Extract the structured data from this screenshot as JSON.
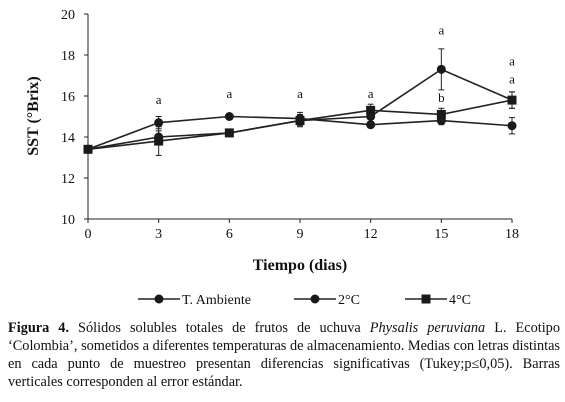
{
  "chart_data": {
    "type": "line",
    "xlabel": "Tiempo (dias)",
    "ylabel": "SST (°Brix)",
    "x": [
      0,
      3,
      6,
      9,
      12,
      15,
      18
    ],
    "xticks": [
      "0",
      "3",
      "6",
      "9",
      "12",
      "15",
      "18"
    ],
    "yticks": [
      "10",
      "12",
      "14",
      "16",
      "18",
      "20"
    ],
    "xlim": [
      0,
      18
    ],
    "ylim": [
      10,
      20
    ],
    "grid": false,
    "legend_position": "bottom",
    "series": [
      {
        "name": "T. Ambiente",
        "marker": "circle",
        "values": [
          13.4,
          14.7,
          15.0,
          14.9,
          14.6,
          14.8,
          14.55
        ],
        "errors": [
          0.05,
          0.3,
          0.1,
          0.3,
          0.15,
          0.2,
          0.4
        ]
      },
      {
        "name": "2°C",
        "marker": "circle",
        "values": [
          13.4,
          14.0,
          14.2,
          14.8,
          15.0,
          17.3,
          15.8
        ],
        "errors": [
          0.05,
          0.3,
          0.15,
          0.25,
          0.3,
          1.0,
          0.4
        ]
      },
      {
        "name": "4°C",
        "marker": "square",
        "values": [
          13.4,
          13.8,
          14.2,
          14.8,
          15.3,
          15.1,
          15.8
        ],
        "errors": [
          0.05,
          0.7,
          0.15,
          0.3,
          0.3,
          0.3,
          0.4
        ]
      }
    ],
    "annotations": [
      {
        "x": 3,
        "y": 15.6,
        "text": "a"
      },
      {
        "x": 6,
        "y": 15.9,
        "text": "a"
      },
      {
        "x": 9,
        "y": 15.9,
        "text": "a"
      },
      {
        "x": 12,
        "y": 15.9,
        "text": "a"
      },
      {
        "x": 15,
        "y": 19.0,
        "text": "a"
      },
      {
        "x": 15,
        "y": 15.7,
        "text": "b"
      },
      {
        "x": 18,
        "y": 17.5,
        "text": "a"
      },
      {
        "x": 18,
        "y": 16.6,
        "text": "a"
      }
    ]
  },
  "caption": {
    "label": "Figura 4.",
    "text_before": " Sólidos solubles totales de frutos de uchuva ",
    "species": "Physalis peruviana",
    "text_after": " L. Ecotipo ‘Colombia’, sometidos a diferentes temperaturas de almacenamiento. Medias con letras distintas en cada punto de muestreo  presentan diferencias significativas (Tukey;p≤0,05). Barras verticales corresponden al error estándar."
  }
}
